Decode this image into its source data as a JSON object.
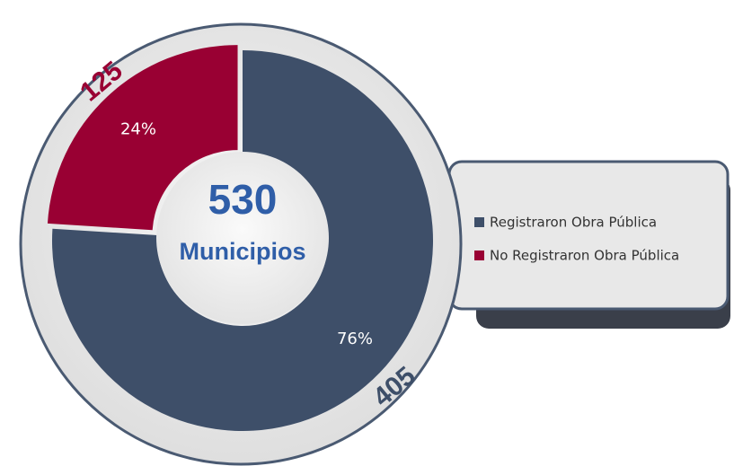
{
  "chart_data": {
    "type": "pie",
    "categories": [
      "Registraron Obra Pública",
      "No Registraron Obra Pública"
    ],
    "values": [
      76,
      24
    ],
    "value_labels": [
      "76%",
      "24%"
    ],
    "counts": [
      405,
      125
    ],
    "colors": [
      "#3e4f69",
      "#990033"
    ],
    "total": 530,
    "center_label": "Municipios",
    "legend": "right"
  }
}
